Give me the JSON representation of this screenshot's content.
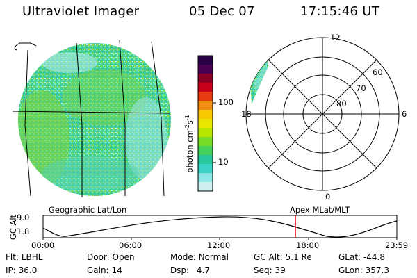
{
  "header": {
    "instrument": "Ultraviolet Imager",
    "date": "05 Dec 07",
    "time": "17:15:46 UT"
  },
  "colorbar": {
    "ticks": [
      {
        "label": "100",
        "value": 100
      },
      {
        "label": "10",
        "value": 10
      }
    ],
    "label_main": "photon cm",
    "label_sup1": "-2",
    "label_mid": "s",
    "label_sup2": "-1",
    "colors": [
      "#2a0046",
      "#4a0050",
      "#8a0028",
      "#c8001e",
      "#e63a12",
      "#f08c14",
      "#f5c800",
      "#e8e600",
      "#b8e600",
      "#78dc28",
      "#46d25a",
      "#28c89c",
      "#3cd2c8",
      "#8ce6e6",
      "#d0f0f0"
    ]
  },
  "left_panel": {
    "caption": "Geographic Lat/Lon"
  },
  "polar_panel": {
    "caption": "Apex MLat/MLT",
    "mlt_labels": {
      "top": "12",
      "left": "18",
      "right": "6",
      "bottom": "0"
    },
    "lat_labels": [
      "60",
      "70",
      "80"
    ]
  },
  "alt_plot": {
    "ylabel": "GC Alt",
    "y_ticks": [
      "9.0",
      "1.8"
    ],
    "x_ticks": [
      "00:00",
      "06:00",
      "12:00",
      "18:00",
      "23:59"
    ],
    "marker_time": "17:15:46"
  },
  "info": {
    "row1": [
      {
        "label": "Flt:",
        "value": "LBHL"
      },
      {
        "label": "Door:",
        "value": "Open"
      },
      {
        "label": "Mode:",
        "value": "Normal"
      },
      {
        "label": "GC Alt:",
        "value": "5.1 Re"
      },
      {
        "label": "GLat:",
        "value": "-44.8"
      }
    ],
    "row2": [
      {
        "label": "IP:",
        "value": "36.0"
      },
      {
        "label": "Gain:",
        "value": "14"
      },
      {
        "label": "Dsp:",
        "value": "4.7"
      },
      {
        "label": "Seq:",
        "value": "39"
      },
      {
        "label": "GLon:",
        "value": "357.3"
      }
    ]
  }
}
